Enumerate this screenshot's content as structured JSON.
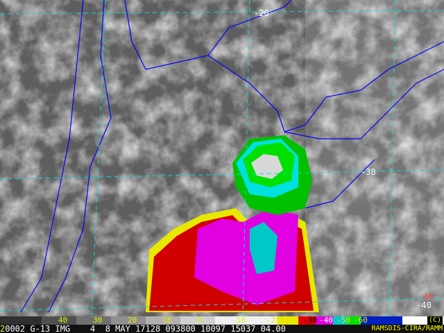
{
  "grid_labels": {
    "lat_top": "-20",
    "lat_mid": "-30",
    "lat_bottom": "-40",
    "lat_bottom_red": "40"
  },
  "colorbar": {
    "labels": [
      "40",
      "30",
      "20",
      "10",
      "0",
      "-10",
      "-20",
      "-30",
      "-40",
      "-50",
      "-60"
    ],
    "colors": [
      "#303030",
      "#505050",
      "#707070",
      "#909090",
      "#b0b0b0",
      "#d0d0d0",
      "#f0f0f0",
      "#e8e800",
      "#e00000",
      "#e000e0",
      "#00c8c8",
      "#00e000",
      "#0020c0",
      "#ffffff"
    ],
    "copyright": "(C)"
  },
  "info_bar": {
    "frame": "2",
    "text": "0002 G-13 IMG    4  8 MAY 17128 093800 10097 15037 04.00",
    "credit": "RAMSDIS-CIRA/RAMM"
  },
  "colors": {
    "borders": "#0000ff",
    "grid": "#00e0e0",
    "grid_alt": "#e04040",
    "state_lines": "#c8c800"
  }
}
